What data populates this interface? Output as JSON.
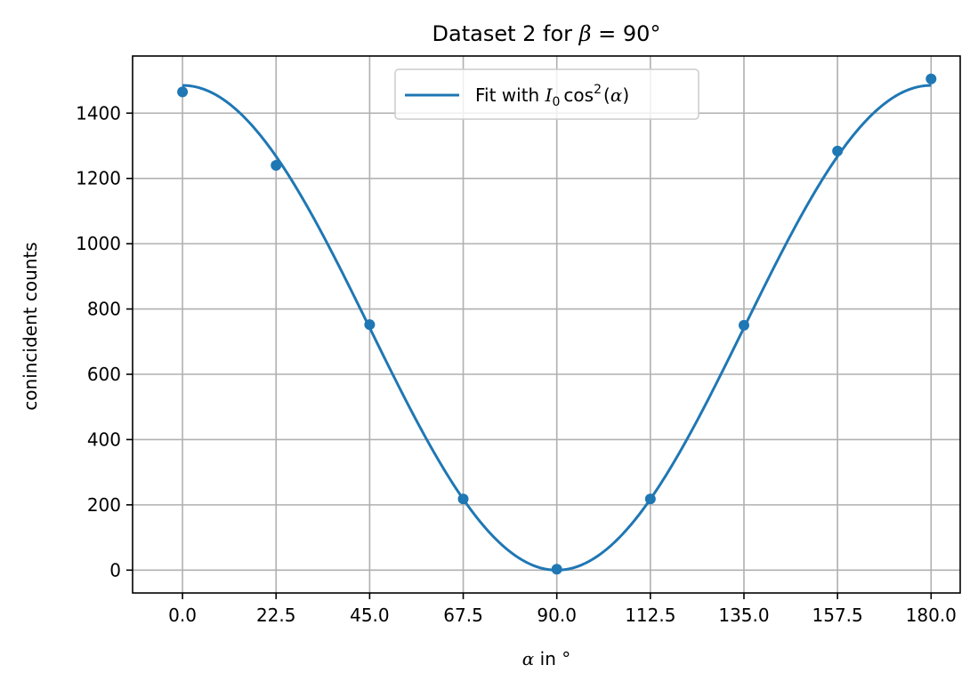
{
  "chart_data": {
    "type": "scatter",
    "title": {
      "prefix": "Dataset 2 for ",
      "symbol": "β",
      "suffix": " = 90°"
    },
    "xlabel": {
      "symbol": "α",
      "suffix": " in °"
    },
    "ylabel": "conincident counts",
    "x_ticks": [
      "0.0",
      "22.5",
      "45.0",
      "67.5",
      "90.0",
      "112.5",
      "135.0",
      "157.5",
      "180.0"
    ],
    "y_ticks": [
      "0",
      "200",
      "400",
      "600",
      "800",
      "1000",
      "1200",
      "1400"
    ],
    "xlim": [
      -12,
      187
    ],
    "ylim": [
      -70,
      1575
    ],
    "grid": true,
    "legend_position": "top-center",
    "series": [
      {
        "kind": "scatter",
        "color": "#1f77b4",
        "x": [
          0,
          22.5,
          45,
          67.5,
          90,
          112.5,
          135,
          157.5,
          180
        ],
        "y": [
          1465,
          1240,
          752,
          218,
          3,
          218,
          750,
          1284,
          1505
        ]
      },
      {
        "kind": "line",
        "name": {
          "prefix": "Fit with ",
          "formula": "I",
          "subscript": "0",
          "func": "cos",
          "power": "2",
          "arg_open": "(",
          "arg": "α",
          "arg_close": ")"
        },
        "color": "#1f77b4",
        "model": "I0*cos^2(alpha - beta)",
        "I0_low_end": 1485,
        "I0_high_end": 1485,
        "phase_deg": 90
      }
    ]
  }
}
